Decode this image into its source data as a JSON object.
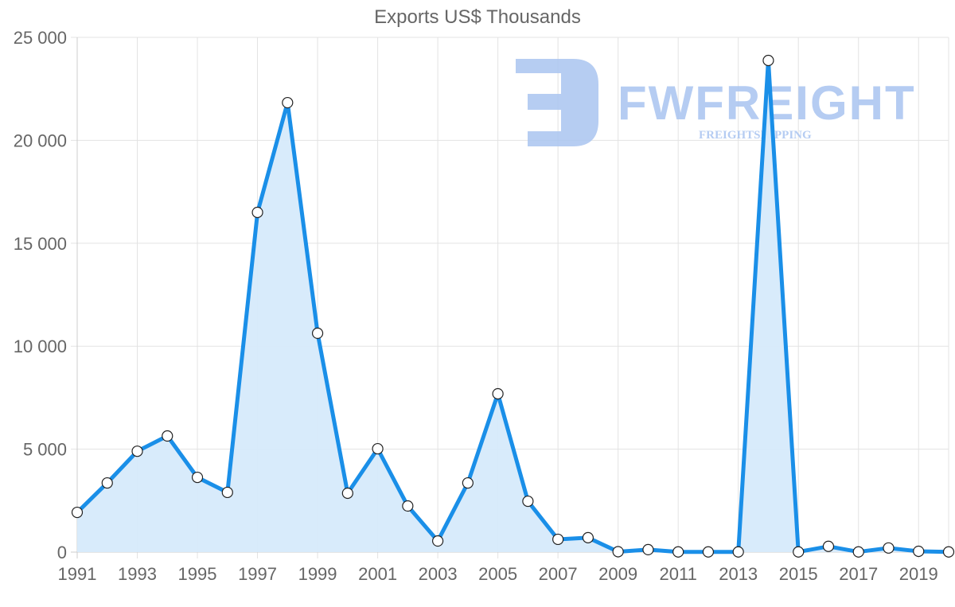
{
  "chart_data": {
    "type": "area",
    "title": "Exports US$ Thousands",
    "xlabel": "",
    "ylabel": "",
    "x": [
      1991,
      1992,
      1993,
      1994,
      1995,
      1996,
      1997,
      1998,
      1999,
      2000,
      2001,
      2002,
      2003,
      2004,
      2005,
      2006,
      2007,
      2008,
      2009,
      2010,
      2011,
      2012,
      2013,
      2014,
      2015,
      2016,
      2017,
      2018,
      2019,
      2020
    ],
    "series": [
      {
        "name": "Exports US$ Thousands",
        "values": [
          1930,
          3360,
          4900,
          5640,
          3630,
          2900,
          16500,
          21830,
          10630,
          2860,
          5020,
          2240,
          540,
          3360,
          7690,
          2470,
          620,
          700,
          20,
          120,
          10,
          10,
          10,
          23880,
          10,
          280,
          10,
          200,
          40,
          10
        ],
        "color": "#1a8fe8",
        "fill": "#d6eafb"
      }
    ],
    "xticks": [
      "1991",
      "1993",
      "1995",
      "1997",
      "1999",
      "2001",
      "2003",
      "2005",
      "2007",
      "2009",
      "2011",
      "2013",
      "2015",
      "2017",
      "2019"
    ],
    "yticks": [
      "0",
      "5 000",
      "10 000",
      "15 000",
      "20 000",
      "25 000"
    ],
    "ylim": [
      0,
      25000
    ],
    "grid": true,
    "legend": "none"
  },
  "watermark": {
    "brand": "FWFREIGHT",
    "tagline": "FREIGHTSHIPPING"
  }
}
